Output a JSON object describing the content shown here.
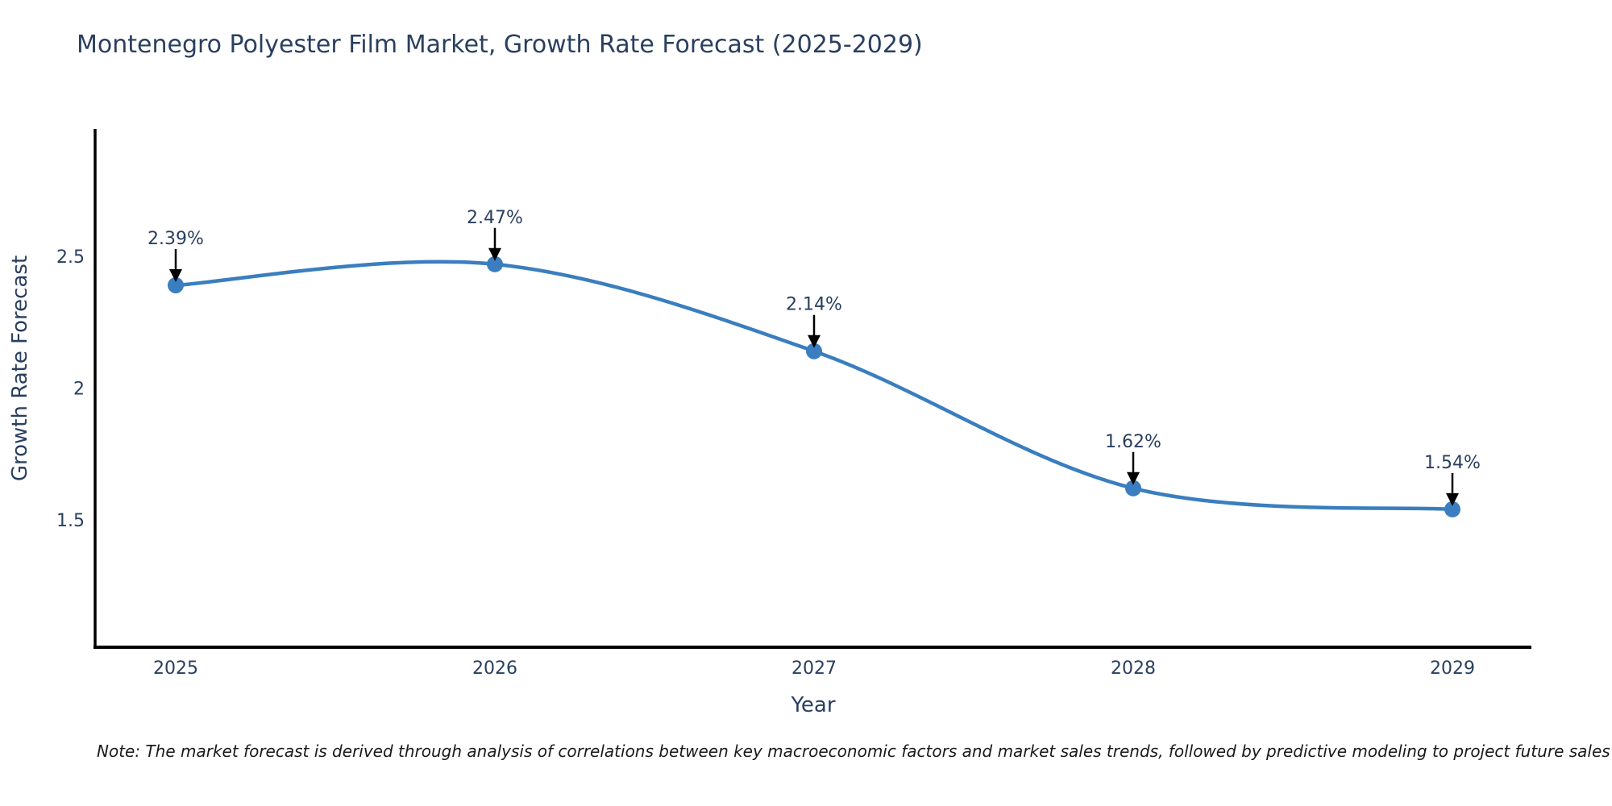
{
  "title": "Montenegro Polyester Film Market, Growth Rate Forecast (2025-2029)",
  "note": "Note: The market forecast is derived through analysis of correlations between key macroeconomic factors and market sales trends, followed by predictive modeling to project future sales",
  "chart_data": {
    "type": "line",
    "title": "Montenegro Polyester Film Market, Growth Rate Forecast (2025-2029)",
    "x": [
      2025,
      2026,
      2027,
      2028,
      2029
    ],
    "values": [
      2.39,
      2.47,
      2.14,
      1.62,
      1.54
    ],
    "point_labels": [
      "2.39%",
      "2.47%",
      "2.14%",
      "1.62%",
      "1.54%"
    ],
    "xlabel": "Year",
    "ylabel": "Growth Rate Forecast",
    "xticks": [
      "2025",
      "2026",
      "2027",
      "2028",
      "2029"
    ],
    "yticks": [
      2.5,
      2,
      1.5
    ],
    "ylim": [
      1.0,
      3.0
    ],
    "line_shape": "spline",
    "grid": false,
    "legend_position": "none",
    "colors": {
      "line": "#3a7ebf",
      "marker": "#3a7ebf",
      "axis": "#000000",
      "tick_text": "#2a3f5f",
      "annotation_text": "#2a3f5f",
      "annotation_arrow": "#000000",
      "background": "#ffffff"
    }
  }
}
